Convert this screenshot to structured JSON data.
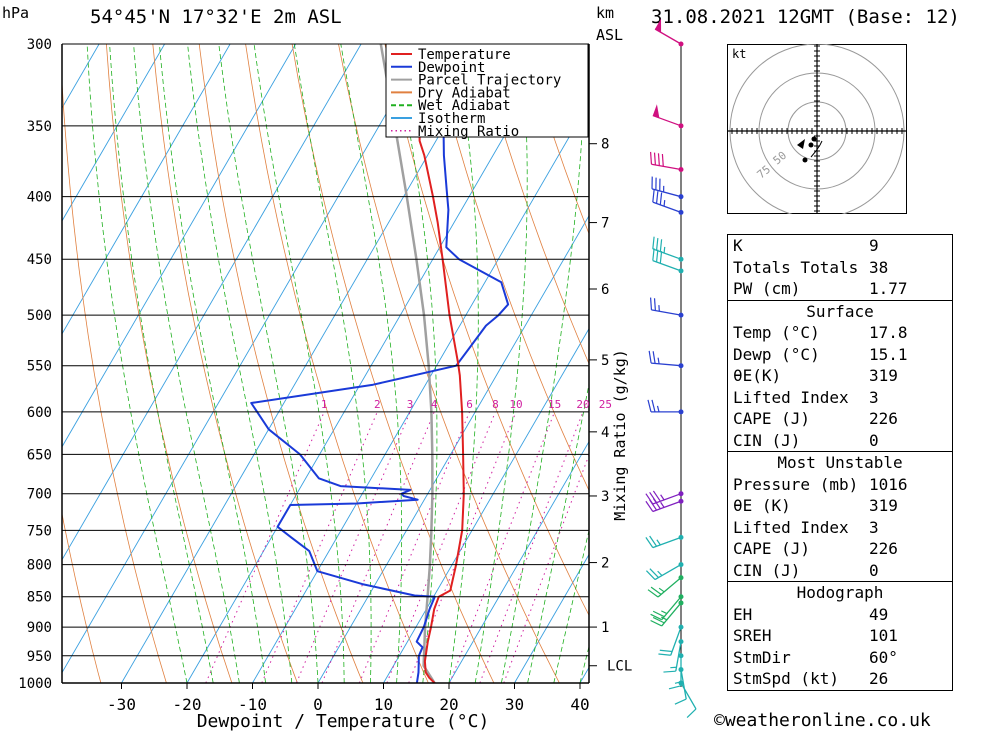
{
  "header": {
    "units_top": "hPa",
    "location": "54°45'N 17°32'E 2m ASL",
    "km_label": "km",
    "asl_label": "ASL",
    "datetime": "31.08.2021 12GMT (Base: 12)"
  },
  "chart_data": {
    "type": "line",
    "title": "54°45'N 17°32'E 2m ASL",
    "xlabel": "Dewpoint / Temperature (°C)",
    "ylabel": "hPa",
    "right_label": "Mixing Ratio (g/kg)",
    "xlim": [
      -40,
      40
    ],
    "ylim": [
      1000,
      300
    ],
    "x_ticks": [
      -30,
      -20,
      -10,
      0,
      10,
      20,
      30,
      40
    ],
    "pressure_levels": [
      300,
      350,
      400,
      450,
      500,
      550,
      600,
      650,
      700,
      750,
      800,
      850,
      900,
      950,
      1000
    ],
    "height_km_ticks": [
      {
        "label": "8",
        "p": 362
      },
      {
        "label": "7",
        "p": 420
      },
      {
        "label": "6",
        "p": 476
      },
      {
        "label": "5",
        "p": 544
      },
      {
        "label": "4",
        "p": 623
      },
      {
        "label": "3",
        "p": 703
      },
      {
        "label": "2",
        "p": 797
      },
      {
        "label": "1",
        "p": 900
      },
      {
        "label": "LCL",
        "p": 968
      }
    ],
    "mixing_ratio_labels": [
      "1",
      "2",
      "3",
      "4",
      "6",
      "8",
      "10",
      "15",
      "20",
      "25"
    ],
    "legend": {
      "position": "top-right",
      "entries": [
        {
          "name": "Temperature",
          "color": "#e02020",
          "dash": "solid"
        },
        {
          "name": "Dewpoint",
          "color": "#1a3ad8",
          "dash": "solid"
        },
        {
          "name": "Parcel Trajectory",
          "color": "#a0a0a0",
          "dash": "solid"
        },
        {
          "name": "Dry Adiabat",
          "color": "#e08040",
          "dash": "solid"
        },
        {
          "name": "Wet Adiabat",
          "color": "#20b020",
          "dash": "dashed"
        },
        {
          "name": "Isotherm",
          "color": "#3aa0e0",
          "dash": "solid"
        },
        {
          "name": "Mixing Ratio",
          "color": "#d020a0",
          "dash": "dotted"
        }
      ]
    },
    "series": [
      {
        "name": "Temperature",
        "color": "#e02020",
        "points": [
          {
            "p": 1000,
            "t": 17.8
          },
          {
            "p": 990,
            "t": 16.5
          },
          {
            "p": 980,
            "t": 15.5
          },
          {
            "p": 960,
            "t": 14.4
          },
          {
            "p": 925,
            "t": 13.1
          },
          {
            "p": 900,
            "t": 12.3
          },
          {
            "p": 870,
            "t": 11.2
          },
          {
            "p": 850,
            "t": 10.8
          },
          {
            "p": 840,
            "t": 12.0
          },
          {
            "p": 800,
            "t": 10.6
          },
          {
            "p": 750,
            "t": 8.5
          },
          {
            "p": 700,
            "t": 5.5
          },
          {
            "p": 650,
            "t": 1.9
          },
          {
            "p": 600,
            "t": -2.0
          },
          {
            "p": 560,
            "t": -5.6
          },
          {
            "p": 545,
            "t": -7.2
          },
          {
            "p": 500,
            "t": -12.5
          },
          {
            "p": 450,
            "t": -18.5
          },
          {
            "p": 420,
            "t": -22.5
          },
          {
            "p": 400,
            "t": -25.5
          },
          {
            "p": 370,
            "t": -30.5
          },
          {
            "p": 360,
            "t": -32.5
          },
          {
            "p": 345,
            "t": -34.5
          },
          {
            "p": 320,
            "t": -39.5
          },
          {
            "p": 300,
            "t": -44.0
          }
        ]
      },
      {
        "name": "Dewpoint",
        "color": "#1a3ad8",
        "points": [
          {
            "p": 1000,
            "t": 15.1
          },
          {
            "p": 980,
            "t": 14.4
          },
          {
            "p": 950,
            "t": 13.0
          },
          {
            "p": 935,
            "t": 12.8
          },
          {
            "p": 925,
            "t": 11.4
          },
          {
            "p": 900,
            "t": 11.2
          },
          {
            "p": 870,
            "t": 10.5
          },
          {
            "p": 850,
            "t": 10.2
          },
          {
            "p": 848,
            "t": 7.0
          },
          {
            "p": 830,
            "t": -2.0
          },
          {
            "p": 810,
            "t": -10.0
          },
          {
            "p": 780,
            "t": -13.0
          },
          {
            "p": 760,
            "t": -17.0
          },
          {
            "p": 745,
            "t": -20.0
          },
          {
            "p": 715,
            "t": -20.0
          },
          {
            "p": 713,
            "t": -10.0
          },
          {
            "p": 708,
            "t": -1.0
          },
          {
            "p": 703,
            "t": -3.5
          },
          {
            "p": 700,
            "t": -4.0
          },
          {
            "p": 695,
            "t": -3.0
          },
          {
            "p": 690,
            "t": -14.0
          },
          {
            "p": 680,
            "t": -18.0
          },
          {
            "p": 650,
            "t": -23.0
          },
          {
            "p": 620,
            "t": -30.0
          },
          {
            "p": 590,
            "t": -35.0
          },
          {
            "p": 570,
            "t": -18.0
          },
          {
            "p": 550,
            "t": -7.0
          },
          {
            "p": 530,
            "t": -6.5
          },
          {
            "p": 510,
            "t": -6.0
          },
          {
            "p": 500,
            "t": -5.0
          },
          {
            "p": 490,
            "t": -4.5
          },
          {
            "p": 470,
            "t": -7.5
          },
          {
            "p": 450,
            "t": -16.0
          },
          {
            "p": 440,
            "t": -19.0
          },
          {
            "p": 410,
            "t": -22.0
          },
          {
            "p": 395,
            "t": -24.0
          },
          {
            "p": 370,
            "t": -27.5
          },
          {
            "p": 355,
            "t": -29.5
          },
          {
            "p": 345,
            "t": -35.5
          },
          {
            "p": 335,
            "t": -33.0
          },
          {
            "p": 320,
            "t": -33.5
          },
          {
            "p": 300,
            "t": -36.5
          }
        ]
      },
      {
        "name": "Parcel Trajectory",
        "color": "#a0a0a0",
        "points": [
          {
            "p": 1000,
            "t": 17.8
          },
          {
            "p": 968,
            "t": 14.6
          },
          {
            "p": 900,
            "t": 11.4
          },
          {
            "p": 850,
            "t": 9.1
          },
          {
            "p": 800,
            "t": 6.6
          },
          {
            "p": 750,
            "t": 3.8
          },
          {
            "p": 700,
            "t": 0.7
          },
          {
            "p": 650,
            "t": -2.8
          },
          {
            "p": 600,
            "t": -6.7
          },
          {
            "p": 550,
            "t": -11.2
          },
          {
            "p": 500,
            "t": -16.4
          },
          {
            "p": 450,
            "t": -22.5
          },
          {
            "p": 400,
            "t": -29.5
          },
          {
            "p": 350,
            "t": -37.6
          },
          {
            "p": 300,
            "t": -47.0
          }
        ]
      }
    ],
    "wind_barbs": [
      {
        "p": 300,
        "dir": 300,
        "kt": 50,
        "color": "#d01080"
      },
      {
        "p": 350,
        "dir": 290,
        "kt": 50,
        "color": "#d01080"
      },
      {
        "p": 380,
        "dir": 280,
        "kt": 40,
        "color": "#d01080"
      },
      {
        "p": 400,
        "dir": 285,
        "kt": 35,
        "color": "#2a40d0"
      },
      {
        "p": 412,
        "dir": 290,
        "kt": 35,
        "color": "#2a40d0"
      },
      {
        "p": 450,
        "dir": 290,
        "kt": 35,
        "color": "#20b0b0"
      },
      {
        "p": 460,
        "dir": 290,
        "kt": 30,
        "color": "#20b0b0"
      },
      {
        "p": 500,
        "dir": 280,
        "kt": 25,
        "color": "#2a40d0"
      },
      {
        "p": 550,
        "dir": 275,
        "kt": 25,
        "color": "#2a40d0"
      },
      {
        "p": 600,
        "dir": 270,
        "kt": 25,
        "color": "#2a40d0"
      },
      {
        "p": 700,
        "dir": 250,
        "kt": 35,
        "color": "#8020c0"
      },
      {
        "p": 710,
        "dir": 250,
        "kt": 35,
        "color": "#8020c0"
      },
      {
        "p": 760,
        "dir": 250,
        "kt": 25,
        "color": "#20b0b0"
      },
      {
        "p": 800,
        "dir": 240,
        "kt": 25,
        "color": "#20b0b0"
      },
      {
        "p": 820,
        "dir": 230,
        "kt": 25,
        "color": "#20b060"
      },
      {
        "p": 850,
        "dir": 220,
        "kt": 25,
        "color": "#20b060"
      },
      {
        "p": 860,
        "dir": 220,
        "kt": 25,
        "color": "#20b060"
      },
      {
        "p": 900,
        "dir": 200,
        "kt": 20,
        "color": "#20b0b0"
      },
      {
        "p": 925,
        "dir": 190,
        "kt": 15,
        "color": "#20b0b0"
      },
      {
        "p": 950,
        "dir": 180,
        "kt": 15,
        "color": "#20b0b0"
      },
      {
        "p": 975,
        "dir": 170,
        "kt": 10,
        "color": "#20b0b0"
      },
      {
        "p": 1000,
        "dir": 150,
        "kt": 10,
        "color": "#20b0b0"
      }
    ],
    "hodograph": {
      "unit_label": "kt",
      "ring_labels": [
        "50",
        "75"
      ],
      "dots": [
        {
          "u": -4,
          "v": -9
        },
        {
          "u": -2,
          "v": -4
        },
        {
          "u": -1,
          "v": -2
        }
      ]
    }
  },
  "indices": {
    "general": [
      {
        "label": "K",
        "value": "9"
      },
      {
        "label": "Totals Totals",
        "value": "38"
      },
      {
        "label": "PW (cm)",
        "value": "1.77"
      }
    ],
    "surface": {
      "title": "Surface",
      "rows": [
        {
          "label": "Temp (°C)",
          "value": "17.8"
        },
        {
          "label": "Dewp (°C)",
          "value": "15.1"
        },
        {
          "label": "θE(K)",
          "value": "319"
        },
        {
          "label": "Lifted Index",
          "value": "3"
        },
        {
          "label": "CAPE (J)",
          "value": "226"
        },
        {
          "label": "CIN (J)",
          "value": "0"
        }
      ]
    },
    "most_unstable": {
      "title": "Most Unstable",
      "rows": [
        {
          "label": "Pressure (mb)",
          "value": "1016"
        },
        {
          "label": "θE (K)",
          "value": "319"
        },
        {
          "label": "Lifted Index",
          "value": "3"
        },
        {
          "label": "CAPE (J)",
          "value": "226"
        },
        {
          "label": "CIN (J)",
          "value": "0"
        }
      ]
    },
    "hodograph": {
      "title": "Hodograph",
      "rows": [
        {
          "label": "EH",
          "value": "49"
        },
        {
          "label": "SREH",
          "value": "101"
        },
        {
          "label": "StmDir",
          "value": "60°"
        },
        {
          "label": "StmSpd (kt)",
          "value": "26"
        }
      ]
    }
  },
  "footer": {
    "copyright_symbol": "©",
    "site": "weatheronline.co.uk"
  }
}
